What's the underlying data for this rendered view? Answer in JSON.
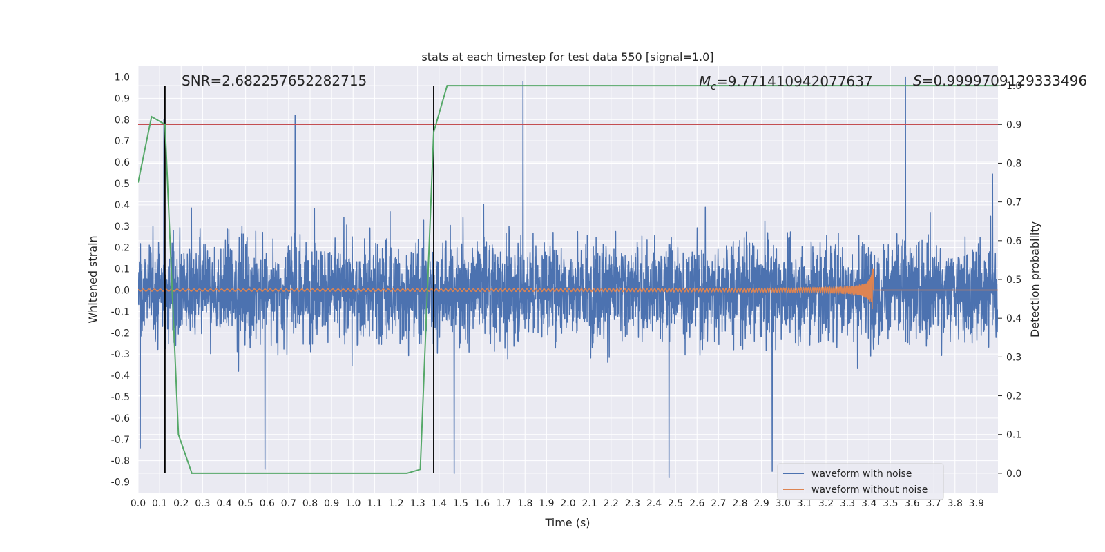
{
  "chart_data": {
    "type": "line",
    "title": "stats at each timestep for test data 550 [signal=1.0]",
    "xlabel": "Time (s)",
    "ylabel": "Whitened strain",
    "y2label": "Detection probability",
    "xlim": [
      0.0,
      4.0
    ],
    "ylim": [
      -0.95,
      1.05
    ],
    "y2lim": [
      -0.05,
      1.05
    ],
    "xticks": [
      "0.0",
      "0.1",
      "0.2",
      "0.3",
      "0.4",
      "0.5",
      "0.6",
      "0.7",
      "0.8",
      "0.9",
      "1.0",
      "1.1",
      "1.2",
      "1.3",
      "1.4",
      "1.5",
      "1.6",
      "1.7",
      "1.8",
      "1.9",
      "2.0",
      "2.1",
      "2.2",
      "2.3",
      "2.4",
      "2.5",
      "2.6",
      "2.7",
      "2.8",
      "2.9",
      "3.0",
      "3.1",
      "3.2",
      "3.3",
      "3.4",
      "3.5",
      "3.6",
      "3.7",
      "3.8",
      "3.9"
    ],
    "yticks": [
      "1.0",
      "0.9",
      "0.8",
      "0.7",
      "0.6",
      "0.5",
      "0.4",
      "0.3",
      "0.2",
      "0.1",
      "0.0",
      "-0.1",
      "-0.2",
      "-0.3",
      "-0.4",
      "-0.5",
      "-0.6",
      "-0.7",
      "-0.8",
      "-0.9"
    ],
    "y2ticks": [
      "1.0",
      "0.9",
      "0.8",
      "0.7",
      "0.6",
      "0.5",
      "0.4",
      "0.3",
      "0.2",
      "0.1",
      "0.0"
    ],
    "annotations": {
      "snr": "SNR=2.682257652282715",
      "mc_symbol": "M",
      "mc_sub": "c",
      "mc_value": "=9.771410942077637",
      "s_symbol": "S",
      "s_value": "=0.9999709129333496"
    },
    "legend": {
      "location": "lower-right",
      "entries": [
        "waveform with noise",
        "waveform without noise"
      ]
    },
    "vertical_lines_x": [
      0.125,
      1.375
    ],
    "threshold_prob": 0.9,
    "noise_series": {
      "name": "waveform with noise",
      "color": "#4c72b0",
      "spread": 0.2,
      "peaks": [
        {
          "x": 0.12,
          "y": 0.8
        },
        {
          "x": 0.73,
          "y": 0.82
        },
        {
          "x": 1.79,
          "y": 0.98
        },
        {
          "x": 3.57,
          "y": 1.0
        },
        {
          "x": 0.01,
          "y": -0.74
        },
        {
          "x": 0.59,
          "y": -0.84
        },
        {
          "x": 1.47,
          "y": -0.86
        },
        {
          "x": 2.47,
          "y": -0.88
        },
        {
          "x": 2.95,
          "y": -0.85
        }
      ]
    },
    "signal_series": {
      "name": "waveform without noise",
      "color": "#dd8452",
      "merger_time": 3.42,
      "peak_amplitude": 0.1
    },
    "probability_series": {
      "name": "detection probability",
      "color": "#55a868",
      "x": [
        0.0,
        0.0625,
        0.125,
        0.1875,
        0.25,
        0.3125,
        1.25,
        1.3125,
        1.375,
        1.4375,
        4.0
      ],
      "y": [
        0.75,
        0.92,
        0.9,
        0.1,
        0.0,
        0.0,
        0.0,
        0.01,
        0.88,
        1.0,
        1.0
      ]
    },
    "colors": {
      "background": "#eaeaf2",
      "grid": "#ffffff",
      "threshold": "#c44e52",
      "vline": "#000000",
      "text": "#262626"
    }
  }
}
